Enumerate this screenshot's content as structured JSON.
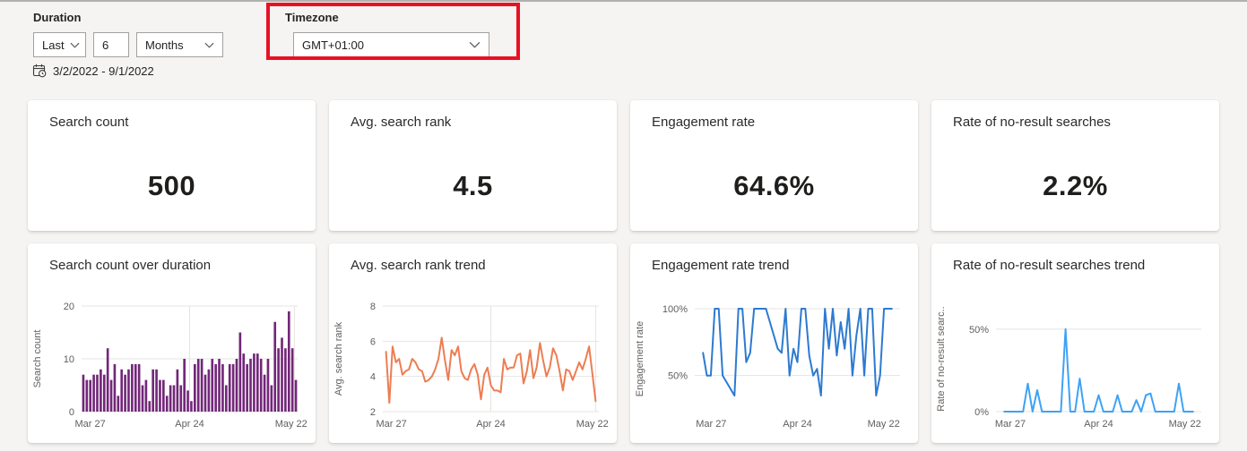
{
  "filters": {
    "duration": {
      "label": "Duration",
      "range_mode": "Last",
      "range_count": "6",
      "range_unit": "Months",
      "date_range": "3/2/2022 - 9/1/2022"
    },
    "timezone": {
      "label": "Timezone",
      "value": "GMT+01:00"
    },
    "highlight_color": "#e81123"
  },
  "metric_cards": [
    {
      "title": "Search count",
      "value": "500"
    },
    {
      "title": "Avg. search rank",
      "value": "4.5"
    },
    {
      "title": "Engagement rate",
      "value": "64.6%"
    },
    {
      "title": "Rate of no-result searches",
      "value": "2.2%"
    }
  ],
  "chart_data": [
    {
      "type": "bar",
      "title": "Search count over duration",
      "ylabel": "Search count",
      "color": "#722779",
      "ylim": [
        0,
        20
      ],
      "yticks": [
        0,
        10,
        20
      ],
      "ytick_labels": [
        "0",
        "10",
        "20"
      ],
      "xtick_labels": [
        "Mar 27",
        "Apr 24",
        "May 22"
      ],
      "xtick_pos": [
        0.04,
        0.5,
        0.97
      ],
      "vgrid": [
        0.5,
        0.985
      ],
      "values": [
        7,
        6,
        6,
        7,
        7,
        8,
        7,
        12,
        6,
        9,
        3,
        8,
        7,
        8,
        9,
        9,
        9,
        5,
        6,
        2,
        8,
        8,
        6,
        6,
        3,
        5,
        5,
        8,
        5,
        10,
        4,
        2,
        9,
        10,
        10,
        7,
        8,
        10,
        9,
        10,
        9,
        5,
        9,
        9,
        10,
        15,
        11,
        9,
        10,
        11,
        11,
        10,
        7,
        10,
        5,
        17,
        12,
        14,
        12,
        19,
        12,
        6
      ]
    },
    {
      "type": "line",
      "title": "Avg. search rank trend",
      "ylabel": "Avg. search rank",
      "color": "#ed7d52",
      "ylim": [
        2,
        8
      ],
      "yticks": [
        2,
        4,
        6,
        8
      ],
      "ytick_labels": [
        "2",
        "4",
        "6",
        "8"
      ],
      "xtick_labels": [
        "Mar 27",
        "Apr 24",
        "May 22"
      ],
      "xtick_pos": [
        0.04,
        0.5,
        0.97
      ],
      "vgrid": [
        0.5,
        0.985
      ],
      "values": [
        5.4,
        2.5,
        5.7,
        4.8,
        5.0,
        4.1,
        4.3,
        4.4,
        5.0,
        4.8,
        4.4,
        4.3,
        3.7,
        3.8,
        4.0,
        4.4,
        5.0,
        6.2,
        4.9,
        3.8,
        5.5,
        5.2,
        5.7,
        4.3,
        3.9,
        3.8,
        4.4,
        4.7,
        4.1,
        2.7,
        4.1,
        4.5,
        3.5,
        3.2,
        3.2,
        3.1,
        5.0,
        4.4,
        4.5,
        4.5,
        5.2,
        5.3,
        3.6,
        4.3,
        5.5,
        3.9,
        4.5,
        5.9,
        4.9,
        4.0,
        4.5,
        5.6,
        5.2,
        4.3,
        3.2,
        4.4,
        4.3,
        3.8,
        4.3,
        4.8,
        4.4,
        5.0,
        5.7,
        4.2,
        2.6
      ]
    },
    {
      "type": "line",
      "title": "Engagement rate trend",
      "ylabel": "Engagement rate",
      "color": "#2d7ad1",
      "ylim": [
        23,
        102
      ],
      "yticks": [
        50,
        100
      ],
      "ytick_labels": [
        "50%",
        "100%"
      ],
      "xtick_labels": [
        "Mar 27",
        "Apr 24",
        "May 22"
      ],
      "xtick_pos": [
        0.08,
        0.5,
        0.92
      ],
      "vgrid": [],
      "inset": 0.04,
      "values": [
        67,
        50,
        50,
        100,
        100,
        50,
        45,
        40,
        35,
        100,
        100,
        60,
        67,
        100,
        100,
        100,
        100,
        90,
        80,
        70,
        67,
        100,
        50,
        70,
        60,
        100,
        100,
        65,
        50,
        55,
        35,
        100,
        70,
        100,
        65,
        90,
        70,
        100,
        50,
        80,
        100,
        50,
        100,
        100,
        35,
        50,
        100,
        100,
        100
      ]
    },
    {
      "type": "line",
      "title": "Rate of no-result searches trend",
      "ylabel": "Rate of no-result searc..",
      "color": "#3ea2f5",
      "ylim": [
        0,
        64
      ],
      "yticks": [
        0,
        50
      ],
      "ytick_labels": [
        "0%",
        "50%"
      ],
      "xtick_labels": [
        "Mar 27",
        "Apr 24",
        "May 22"
      ],
      "xtick_pos": [
        0.07,
        0.5,
        0.92
      ],
      "vgrid": [],
      "inset": 0.04,
      "values": [
        0,
        0,
        0,
        0,
        0,
        17,
        0,
        13,
        0,
        0,
        0,
        0,
        0,
        50,
        0,
        0,
        20,
        0,
        0,
        0,
        10,
        0,
        0,
        0,
        10,
        0,
        0,
        0,
        7,
        0,
        10,
        11,
        0,
        0,
        0,
        0,
        0,
        17,
        0,
        0,
        0
      ]
    }
  ]
}
